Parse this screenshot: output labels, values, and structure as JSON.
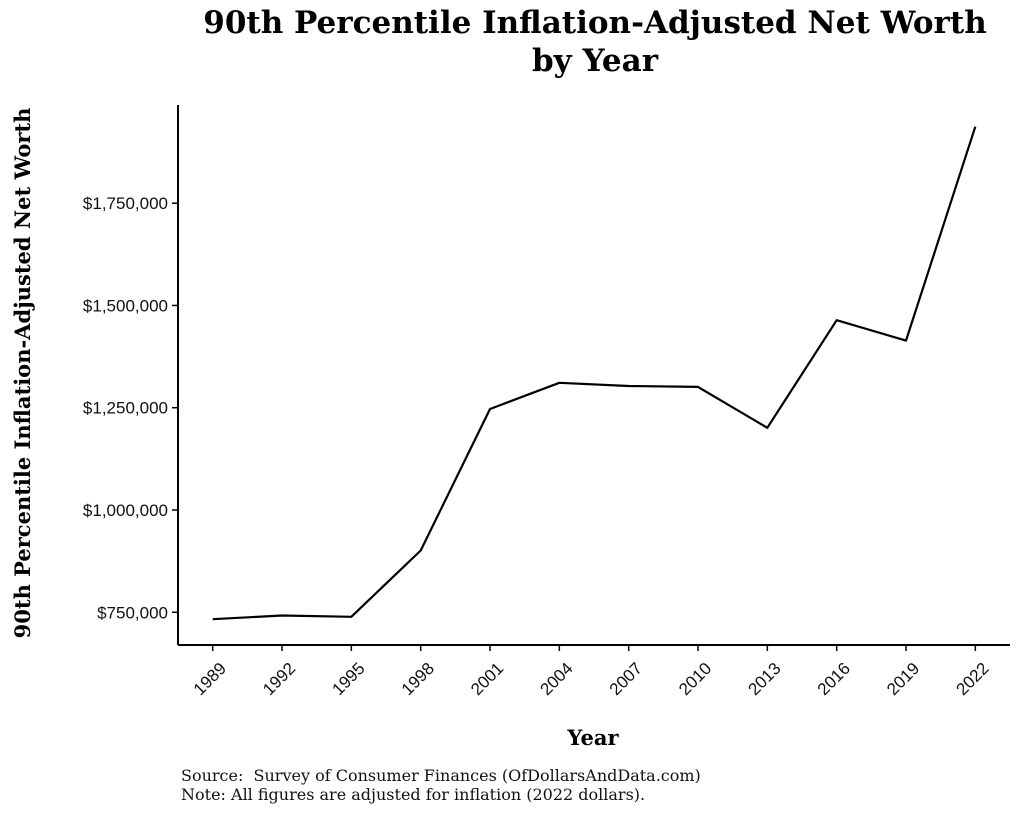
{
  "title_line1": "90th Percentile Inflation-Adjusted Net Worth",
  "title_line2": "by Year",
  "source": "Source:  Survey of Consumer Finances (OfDollarsAndData.com)",
  "note": "Note: All figures are adjusted for inflation (2022 dollars).",
  "chart_data": {
    "type": "line",
    "title": "90th Percentile Inflation-Adjusted Net Worth by Year",
    "xlabel": "Year",
    "ylabel": "90th Percentile Inflation-Adjusted Net Worth",
    "x": [
      1989,
      1992,
      1995,
      1998,
      2001,
      2004,
      2007,
      2010,
      2013,
      2016,
      2019,
      2022
    ],
    "x_tick_labels": [
      "1989",
      "1992",
      "1995",
      "1998",
      "2001",
      "2004",
      "2007",
      "2010",
      "2013",
      "2016",
      "2019",
      "2022"
    ],
    "y_ticks": [
      750000,
      1000000,
      1250000,
      1500000,
      1750000
    ],
    "y_tick_labels": [
      "$750,000",
      "$1,000,000",
      "$1,250,000",
      "$1,500,000",
      "$1,750,000"
    ],
    "ylim": [
      670000,
      1990000
    ],
    "xlim": [
      1987.5,
      2023.5
    ],
    "grid": false,
    "series": [
      {
        "values": [
          733000,
          742000,
          739000,
          901000,
          1247000,
          1311000,
          1303000,
          1301000,
          1201000,
          1464000,
          1414000,
          1937000
        ],
        "color": "#000000"
      }
    ]
  }
}
